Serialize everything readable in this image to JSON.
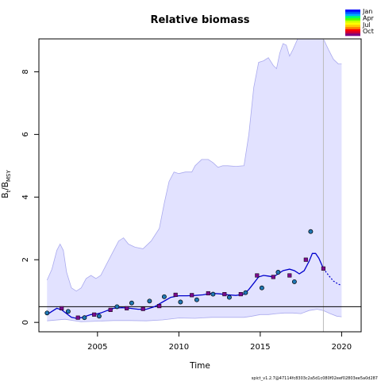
{
  "chart_data": {
    "type": "line",
    "title": "Relative biomass",
    "xlabel": "Time",
    "ylabel_main": "B",
    "ylabel_sub_t": "t",
    "ylabel_sep": "/B",
    "ylabel_sub_msy": "MSY",
    "xlim": [
      2001.4,
      2021.2
    ],
    "ylim": [
      -0.3,
      9.05
    ],
    "xticks": [
      2005,
      2010,
      2015,
      2020
    ],
    "yticks": [
      0,
      2,
      4,
      6,
      8
    ],
    "reference_line": 0.5,
    "end_of_data_year": 2018.88,
    "legend_position": "top-right",
    "legend": [
      "Jan",
      "Apr",
      "Jul",
      "Oct"
    ],
    "colors": {
      "ci_fill": "#e2e2ff",
      "ci_line": "#aaaaee",
      "estimate_line": "#0000cc",
      "observation_fill": "#1f77b4",
      "predicted_fill": "#7a0a8e",
      "reference_line": "#000000",
      "end_line": "#bbbbbb"
    },
    "estimate": {
      "x": [
        2001.9,
        2002.2,
        2002.5,
        2002.8,
        2003.1,
        2003.4,
        2003.7,
        2004.0,
        2004.3,
        2004.6,
        2004.9,
        2005.2,
        2005.6,
        2006.0,
        2006.5,
        2007.0,
        2007.5,
        2008.0,
        2008.5,
        2009.0,
        2009.5,
        2010.0,
        2010.5,
        2011.0,
        2011.5,
        2012.0,
        2012.5,
        2013.0,
        2013.5,
        2014.0,
        2014.3,
        2014.6,
        2014.9,
        2015.2,
        2015.5,
        2015.8,
        2016.1,
        2016.4,
        2016.8,
        2017.1,
        2017.4,
        2017.7,
        2018.0,
        2018.2,
        2018.4,
        2018.6,
        2018.88
      ],
      "y": [
        0.25,
        0.35,
        0.45,
        0.4,
        0.28,
        0.16,
        0.13,
        0.15,
        0.2,
        0.25,
        0.26,
        0.3,
        0.38,
        0.45,
        0.47,
        0.45,
        0.42,
        0.42,
        0.5,
        0.65,
        0.8,
        0.85,
        0.85,
        0.86,
        0.88,
        0.93,
        0.91,
        0.88,
        0.86,
        0.9,
        1.05,
        1.25,
        1.45,
        1.5,
        1.48,
        1.45,
        1.55,
        1.65,
        1.7,
        1.65,
        1.55,
        1.65,
        1.95,
        2.2,
        2.2,
        2.05,
        1.72
      ]
    },
    "forecast": {
      "x": [
        2018.88,
        2019.2,
        2019.5,
        2019.8,
        2020.0
      ],
      "y": [
        1.72,
        1.5,
        1.32,
        1.22,
        1.18
      ]
    },
    "ci_upper": {
      "x": [
        2001.9,
        2002.2,
        2002.5,
        2002.7,
        2002.9,
        2003.1,
        2003.4,
        2003.7,
        2004.0,
        2004.3,
        2004.6,
        2004.9,
        2005.2,
        2005.6,
        2006.0,
        2006.3,
        2006.6,
        2006.9,
        2007.3,
        2007.8,
        2008.3,
        2008.8,
        2009.1,
        2009.4,
        2009.7,
        2010.0,
        2010.4,
        2010.8,
        2011.0,
        2011.4,
        2011.8,
        2012.1,
        2012.4,
        2012.7,
        2013.0,
        2013.5,
        2014.0,
        2014.3,
        2014.6,
        2014.9,
        2015.2,
        2015.5,
        2015.8,
        2016.0,
        2016.2,
        2016.4,
        2016.6,
        2016.8,
        2017.0,
        2017.3,
        2017.6,
        2017.9,
        2018.2,
        2018.5,
        2018.88,
        2019.2,
        2019.5,
        2019.8,
        2020.0
      ],
      "y": [
        1.35,
        1.7,
        2.3,
        2.5,
        2.3,
        1.6,
        1.1,
        1.0,
        1.1,
        1.4,
        1.5,
        1.4,
        1.5,
        1.9,
        2.3,
        2.6,
        2.7,
        2.5,
        2.4,
        2.35,
        2.6,
        3.0,
        3.8,
        4.5,
        4.8,
        4.75,
        4.8,
        4.8,
        5.0,
        5.2,
        5.2,
        5.1,
        4.95,
        5.0,
        5.0,
        4.98,
        5.0,
        6.0,
        7.5,
        8.3,
        8.35,
        8.45,
        8.2,
        8.1,
        8.6,
        8.9,
        8.85,
        8.5,
        8.7,
        9.05,
        9.05,
        9.05,
        9.05,
        9.05,
        9.05,
        8.7,
        8.4,
        8.25,
        8.25
      ]
    },
    "ci_lower": {
      "x": [
        2001.9,
        2003.0,
        2004.0,
        2005.0,
        2006.0,
        2007.0,
        2008.0,
        2009.0,
        2010.0,
        2011.0,
        2012.0,
        2013.0,
        2014.0,
        2014.5,
        2015.0,
        2015.5,
        2016.0,
        2016.5,
        2017.0,
        2017.5,
        2018.0,
        2018.5,
        2018.88,
        2019.3,
        2019.7,
        2020.0
      ],
      "y": [
        0.05,
        0.1,
        0.02,
        0.04,
        0.06,
        0.06,
        0.05,
        0.08,
        0.14,
        0.13,
        0.16,
        0.16,
        0.16,
        0.2,
        0.25,
        0.25,
        0.28,
        0.3,
        0.3,
        0.28,
        0.38,
        0.42,
        0.38,
        0.28,
        0.2,
        0.18
      ]
    },
    "observations": [
      [
        2001.9,
        0.3
      ],
      [
        2003.2,
        0.35
      ],
      [
        2004.2,
        0.15
      ],
      [
        2005.1,
        0.2
      ],
      [
        2006.2,
        0.5
      ],
      [
        2007.1,
        0.62
      ],
      [
        2008.2,
        0.68
      ],
      [
        2009.1,
        0.82
      ],
      [
        2010.1,
        0.65
      ],
      [
        2011.1,
        0.72
      ],
      [
        2012.1,
        0.9
      ],
      [
        2013.1,
        0.8
      ],
      [
        2014.1,
        0.95
      ],
      [
        2015.1,
        1.1
      ],
      [
        2016.1,
        1.6
      ],
      [
        2017.1,
        1.3
      ],
      [
        2018.1,
        2.9
      ]
    ],
    "predicted_points": [
      [
        2002.8,
        0.45
      ],
      [
        2003.8,
        0.15
      ],
      [
        2004.8,
        0.25
      ],
      [
        2005.8,
        0.4
      ],
      [
        2006.8,
        0.45
      ],
      [
        2007.8,
        0.43
      ],
      [
        2008.8,
        0.52
      ],
      [
        2009.8,
        0.88
      ],
      [
        2010.8,
        0.87
      ],
      [
        2011.8,
        0.93
      ],
      [
        2012.8,
        0.9
      ],
      [
        2013.8,
        0.9
      ],
      [
        2014.8,
        1.5
      ],
      [
        2015.8,
        1.45
      ],
      [
        2016.8,
        1.5
      ],
      [
        2017.8,
        2.0
      ],
      [
        2018.88,
        1.72
      ]
    ],
    "footer": "spict_v1.2.7@47114fc8303c2a5d1c080f02eef02803ee5a0d287"
  }
}
